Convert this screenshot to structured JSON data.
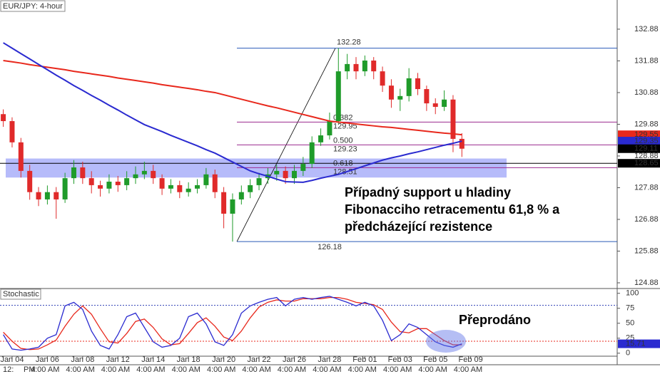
{
  "chart_data": {
    "type": "candlestick",
    "title": "EUR/JPY: 4-hour",
    "categories": [
      null,
      "Jan 04",
      null,
      null,
      null,
      "Jan 06",
      null,
      null,
      null,
      "Jan 08",
      null,
      null,
      null,
      "Jan 12",
      null,
      null,
      null,
      "Jan 14",
      null,
      null,
      null,
      "Jan 18",
      null,
      null,
      null,
      "Jan 20",
      null,
      null,
      null,
      "Jan 22",
      null,
      null,
      null,
      "Jan 26",
      null,
      null,
      null,
      "Jan 28",
      null,
      null,
      null,
      "Feb 01",
      null,
      null,
      null,
      "Feb 03",
      null,
      null,
      null,
      "Feb 05",
      null,
      null,
      null,
      "Feb 09",
      null,
      null
    ],
    "time_labels": [
      "12:",
      "PM",
      "4:00 AM",
      "4:00 AM",
      "4:00 AM",
      "4:00 AM",
      "4:00 AM",
      "4:00 AM",
      "4:00 AM",
      "4:00 AM",
      "4:00 AM",
      "4:00 AM",
      "4:00 AM",
      "4:00 AM",
      "4:00 AM"
    ],
    "up_color": "#1f9b2a",
    "down_color": "#e02a2a",
    "candles": {
      "open": [
        130.2,
        129.98,
        129.31,
        128.41,
        127.74,
        127.51,
        127.74,
        127.51,
        128.18,
        128.52,
        128.18,
        127.96,
        127.85,
        128.07,
        127.96,
        128.18,
        128.3,
        128.41,
        128.18,
        127.85,
        127.96,
        127.74,
        127.85,
        127.96,
        128.3,
        127.74,
        127.06,
        127.51,
        127.74,
        127.96,
        128.18,
        128.3,
        128.41,
        128.18,
        128.41,
        128.63,
        129.31,
        129.53,
        129.98,
        131.55,
        131.78,
        131.55,
        131.89,
        131.55,
        131.1,
        130.66,
        130.77,
        131.33,
        130.99,
        130.54,
        130.43,
        130.66,
        129.42
      ],
      "high": [
        130.35,
        130.1,
        129.45,
        128.6,
        127.9,
        127.95,
        127.9,
        128.35,
        128.75,
        128.7,
        128.4,
        128.1,
        128.3,
        128.25,
        128.4,
        128.55,
        128.7,
        128.6,
        128.3,
        128.15,
        128.1,
        128.05,
        128.15,
        128.5,
        128.45,
        127.9,
        127.7,
        127.95,
        128.15,
        128.35,
        128.5,
        128.6,
        128.55,
        128.6,
        128.85,
        129.5,
        129.75,
        130.25,
        132.28,
        132.1,
        132.0,
        132.05,
        132.0,
        131.7,
        131.3,
        131.0,
        131.65,
        131.5,
        131.1,
        130.7,
        130.95,
        130.8,
        129.6
      ],
      "low": [
        129.8,
        129.15,
        128.2,
        127.5,
        127.3,
        127.35,
        126.9,
        127.4,
        128.0,
        128.0,
        127.7,
        127.6,
        127.7,
        127.75,
        127.8,
        128.0,
        128.15,
        128.0,
        127.65,
        127.7,
        127.55,
        127.6,
        127.7,
        127.85,
        127.55,
        126.6,
        126.18,
        127.35,
        127.55,
        127.8,
        128.0,
        128.1,
        128.0,
        128.0,
        128.25,
        128.5,
        129.2,
        129.4,
        129.9,
        131.3,
        131.3,
        131.4,
        131.3,
        130.9,
        130.4,
        130.3,
        130.6,
        130.8,
        130.3,
        130.2,
        130.3,
        129.0,
        128.85
      ],
      "close": [
        129.98,
        129.31,
        128.41,
        127.74,
        127.51,
        127.74,
        127.51,
        128.18,
        128.52,
        128.18,
        127.96,
        127.85,
        128.07,
        127.96,
        128.18,
        128.3,
        128.41,
        128.18,
        127.85,
        127.96,
        127.74,
        127.85,
        127.96,
        128.3,
        127.74,
        127.06,
        127.51,
        127.74,
        127.96,
        128.18,
        128.3,
        128.41,
        128.18,
        128.41,
        128.63,
        129.31,
        129.53,
        129.98,
        131.55,
        131.78,
        131.55,
        131.89,
        131.55,
        131.1,
        130.66,
        130.77,
        131.33,
        130.99,
        130.54,
        130.43,
        130.66,
        129.42,
        129.11
      ]
    },
    "moving_averages": [
      {
        "color": "#e8281c",
        "values": [
          131.89,
          131.85,
          131.81,
          131.76,
          131.72,
          131.68,
          131.64,
          131.6,
          131.55,
          131.51,
          131.47,
          131.43,
          131.39,
          131.34,
          131.3,
          131.26,
          131.22,
          131.18,
          131.13,
          131.09,
          131.05,
          131.01,
          130.97,
          130.92,
          130.88,
          130.81,
          130.74,
          130.67,
          130.6,
          130.53,
          130.46,
          130.4,
          130.33,
          130.26,
          130.19,
          130.12,
          130.05,
          129.98,
          129.95,
          129.92,
          129.89,
          129.86,
          129.83,
          129.8,
          129.78,
          129.75,
          129.72,
          129.69,
          129.66,
          129.63,
          129.6,
          129.58,
          129.55
        ]
      },
      {
        "color": "#2a2ad0",
        "values": [
          132.45,
          132.28,
          132.11,
          131.94,
          131.77,
          131.6,
          131.43,
          131.27,
          131.1,
          130.95,
          130.79,
          130.64,
          130.48,
          130.33,
          130.17,
          130.02,
          129.87,
          129.76,
          129.65,
          129.53,
          129.42,
          129.31,
          129.2,
          129.08,
          128.97,
          128.83,
          128.69,
          128.55,
          128.41,
          128.32,
          128.24,
          128.15,
          128.07,
          128.06,
          128.05,
          128.11,
          128.18,
          128.24,
          128.3,
          128.39,
          128.48,
          128.57,
          128.66,
          128.75,
          128.82,
          128.88,
          128.95,
          129.01,
          129.08,
          129.15,
          129.22,
          129.28,
          129.35
        ]
      }
    ],
    "ylim": [
      124.7,
      133.8
    ],
    "yticks": [
      124.88,
      125.88,
      126.88,
      127.88,
      128.88,
      129.88,
      130.88,
      131.88,
      132.88
    ],
    "price_tags": [
      {
        "value": 129.55,
        "color": "#e8281c"
      },
      {
        "value": 129.35,
        "color": "#2a2ad0"
      },
      {
        "value": 129.11,
        "color": "#000000"
      },
      {
        "value": 128.65,
        "color": "#000000"
      }
    ],
    "fibonacci": {
      "high": 132.28,
      "low": 126.18,
      "color": "#2a5ab8",
      "level_color": "#9b2a8e",
      "levels": [
        {
          "ratio": 0.382,
          "price": 129.95
        },
        {
          "ratio": {
            "value": 0.5,
            "label": "0.500"
          },
          "price": 129.23
        },
        {
          "ratio": 0.618,
          "price": 128.51
        }
      ]
    },
    "support_zone": {
      "from": 128.2,
      "to": 128.8,
      "color": "rgba(110,120,245,0.5)"
    },
    "annotation": [
      "Případný support u hladiny",
      "Fibonacciho retracementu 61,8 % a",
      "předcházející rezistence"
    ],
    "stochastic": {
      "title": "Stochastic",
      "annotation": "Přeprodáno",
      "ylim": [
        -5,
        108
      ],
      "yticks": [
        0,
        25,
        50,
        75,
        100
      ],
      "levels": [
        20,
        80
      ],
      "series": [
        {
          "color": "#2a2ad0",
          "values": [
            31,
            7,
            5,
            7,
            10,
            25,
            31,
            79,
            85,
            73,
            37,
            13,
            7,
            31,
            61,
            67,
            43,
            19,
            10,
            13,
            25,
            61,
            67,
            49,
            19,
            13,
            31,
            67,
            79,
            85,
            90,
            93,
            79,
            90,
            93,
            90,
            93,
            95,
            90,
            85,
            79,
            85,
            79,
            55,
            21,
            31,
            49,
            43,
            31,
            19,
            13,
            10,
            15.71
          ]
        },
        {
          "color": "#e8281c",
          "values": [
            35,
            20,
            8,
            6,
            7,
            14,
            22,
            45,
            65,
            79,
            65,
            41,
            19,
            17,
            33,
            53,
            57,
            43,
            24,
            14,
            16,
            33,
            51,
            59,
            45,
            27,
            21,
            37,
            59,
            77,
            85,
            89,
            87,
            87,
            91,
            91,
            91,
            93,
            93,
            90,
            85,
            83,
            81,
            73,
            52,
            36,
            34,
            41,
            41,
            31,
            21,
            14,
            14
          ]
        }
      ],
      "tag": {
        "value": 15.71,
        "color": "#2a2ad0"
      }
    }
  }
}
